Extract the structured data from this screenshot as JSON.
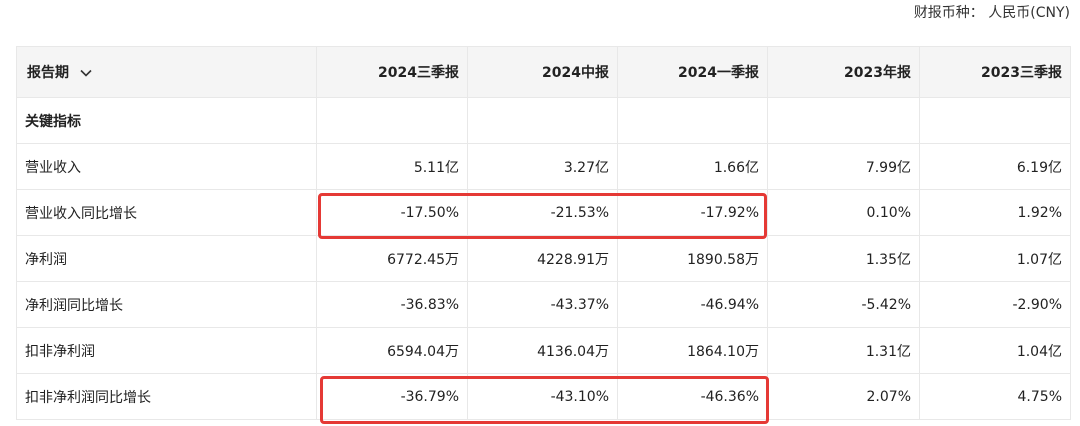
{
  "currency_label": "财报币种：  人民币(CNY)",
  "header": {
    "period_label": "报告期",
    "columns": [
      "2024三季报",
      "2024中报",
      "2024一季报",
      "2023年报",
      "2023三季报"
    ]
  },
  "section_title": "关键指标",
  "rows": [
    {
      "label": "营业收入",
      "values": [
        "5.11亿",
        "3.27亿",
        "1.66亿",
        "7.99亿",
        "6.19亿"
      ]
    },
    {
      "label": "营业收入同比增长",
      "values": [
        "-17.50%",
        "-21.53%",
        "-17.92%",
        "0.10%",
        "1.92%"
      ]
    },
    {
      "label": "净利润",
      "values": [
        "6772.45万",
        "4228.91万",
        "1890.58万",
        "1.35亿",
        "1.07亿"
      ]
    },
    {
      "label": "净利润同比增长",
      "values": [
        "-36.83%",
        "-43.37%",
        "-46.94%",
        "-5.42%",
        "-2.90%"
      ]
    },
    {
      "label": "扣非净利润",
      "values": [
        "6594.04万",
        "4136.04万",
        "1864.10万",
        "1.31亿",
        "1.04亿"
      ]
    },
    {
      "label": "扣非净利润同比增长",
      "values": [
        "-36.79%",
        "-43.10%",
        "-46.36%",
        "2.07%",
        "4.75%"
      ]
    }
  ],
  "colors": {
    "highlight": "#e53935",
    "header_bg": "#f5f5f5",
    "border": "#e8e8e8"
  }
}
